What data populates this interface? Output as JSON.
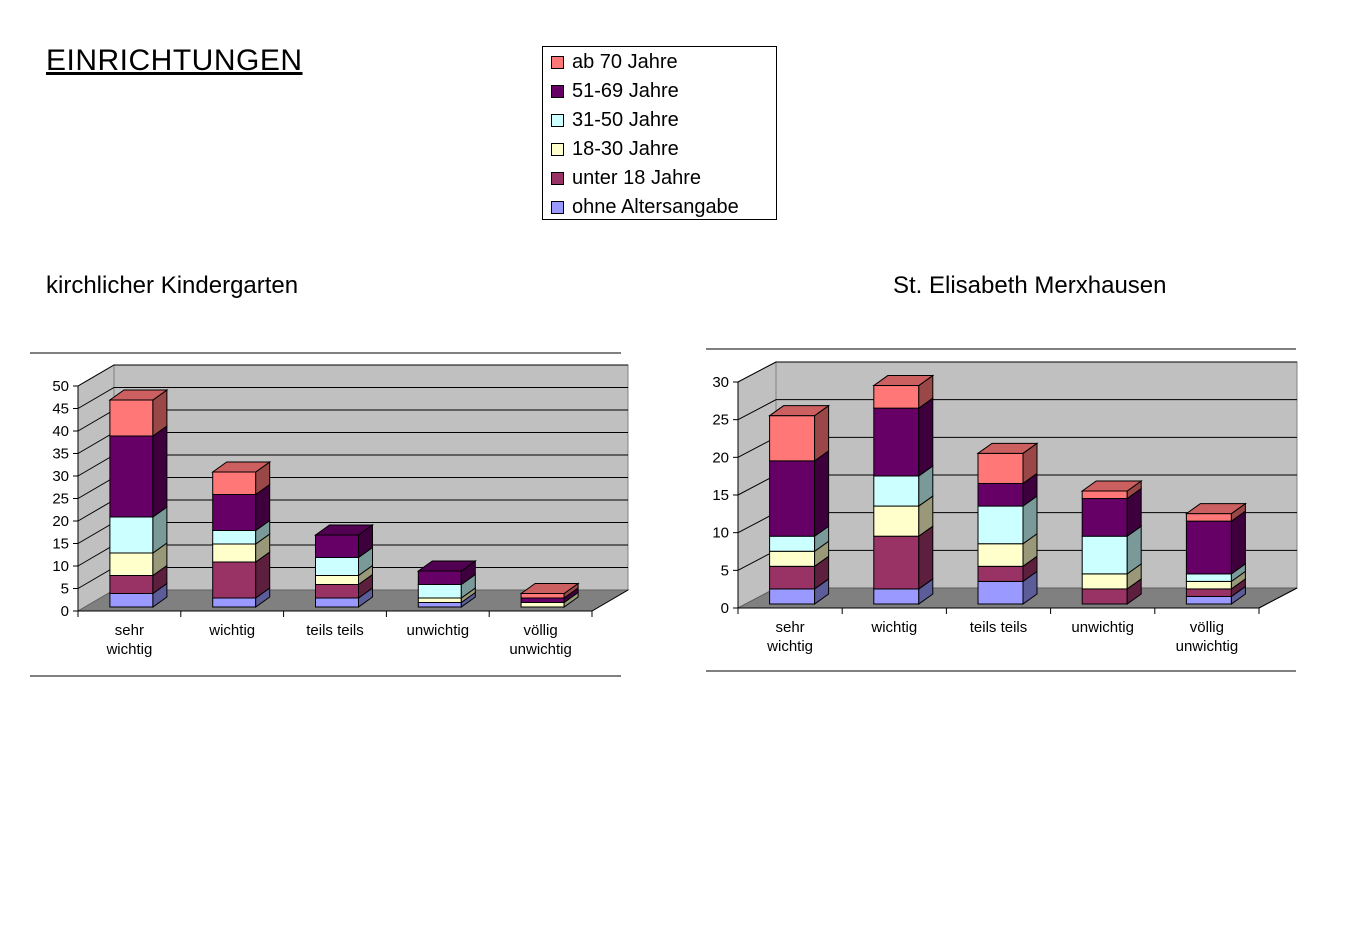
{
  "page": {
    "title": "EINRICHTUNGEN"
  },
  "legend": {
    "items": [
      {
        "label": "ab 70 Jahre",
        "color": "#ff7777"
      },
      {
        "label": "51-69 Jahre",
        "color": "#660066"
      },
      {
        "label": "31-50 Jahre",
        "color": "#ccffff"
      },
      {
        "label": "18-30 Jahre",
        "color": "#ffffcc"
      },
      {
        "label": "unter 18 Jahre",
        "color": "#993366"
      },
      {
        "label": "ohne Altersangabe",
        "color": "#9999ff"
      }
    ]
  },
  "chart_data": [
    {
      "type": "bar",
      "stacked": true,
      "three_d": true,
      "title": "kirchlicher Kindergarten",
      "categories": [
        "sehr wichtig",
        "wichtig",
        "teils teils",
        "unwichtig",
        "völlig unwichtig"
      ],
      "ylim": [
        0,
        50
      ],
      "yticks": [
        0,
        5,
        10,
        15,
        20,
        25,
        30,
        35,
        40,
        45,
        50
      ],
      "grid": true,
      "series": [
        {
          "name": "ohne Altersangabe",
          "values": [
            3,
            2,
            2,
            1,
            0
          ]
        },
        {
          "name": "unter 18 Jahre",
          "values": [
            4,
            8,
            3,
            0,
            0
          ]
        },
        {
          "name": "18-30 Jahre",
          "values": [
            5,
            4,
            2,
            1,
            1
          ]
        },
        {
          "name": "31-50 Jahre",
          "values": [
            8,
            3,
            4,
            3,
            0
          ]
        },
        {
          "name": "51-69 Jahre",
          "values": [
            18,
            8,
            5,
            3,
            1
          ]
        },
        {
          "name": "ab 70 Jahre",
          "values": [
            8,
            5,
            0,
            0,
            1
          ]
        }
      ]
    },
    {
      "type": "bar",
      "stacked": true,
      "three_d": true,
      "title": "St. Elisabeth Merxhausen",
      "categories": [
        "sehr wichtig",
        "wichtig",
        "teils teils",
        "unwichtig",
        "völlig unwichtig"
      ],
      "ylim": [
        0,
        30
      ],
      "yticks": [
        0,
        5,
        10,
        15,
        20,
        25,
        30
      ],
      "grid": true,
      "series": [
        {
          "name": "ohne Altersangabe",
          "values": [
            2,
            2,
            3,
            0,
            1
          ]
        },
        {
          "name": "unter 18 Jahre",
          "values": [
            3,
            7,
            2,
            2,
            1
          ]
        },
        {
          "name": "18-30 Jahre",
          "values": [
            2,
            4,
            3,
            2,
            1
          ]
        },
        {
          "name": "31-50 Jahre",
          "values": [
            2,
            4,
            5,
            5,
            1
          ]
        },
        {
          "name": "51-69 Jahre",
          "values": [
            10,
            9,
            3,
            5,
            7
          ]
        },
        {
          "name": "ab 70 Jahre",
          "values": [
            6,
            3,
            4,
            1,
            1
          ]
        }
      ]
    }
  ]
}
